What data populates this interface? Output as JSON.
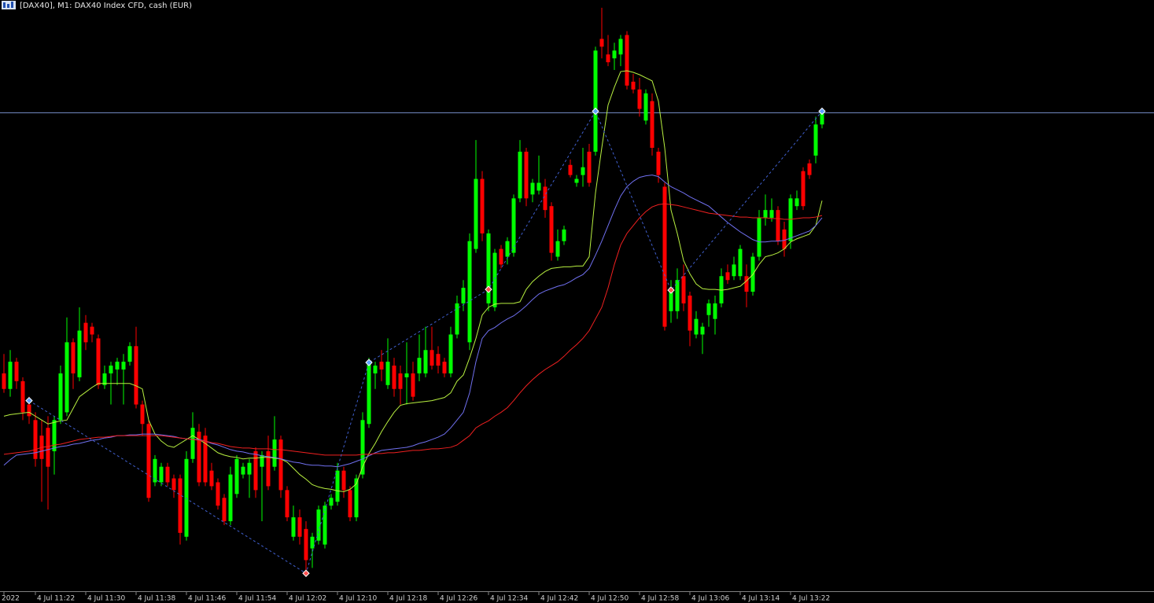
{
  "chart_data": {
    "type": "candlestick",
    "title": "[DAX40], M1:  DAX40 Index CFD, cash (EUR)",
    "categories": [
      "2022",
      null,
      null,
      null,
      null,
      "4 Jul 11:22",
      null,
      null,
      null,
      null,
      null,
      null,
      null,
      "4 Jul 11:30",
      null,
      null,
      null,
      null,
      null,
      null,
      null,
      "4 Jul 11:38",
      null,
      null,
      null,
      null,
      null,
      null,
      null,
      "4 Jul 11:46",
      null,
      null,
      null,
      null,
      null,
      null,
      null,
      "4 Jul 11:54",
      null,
      null,
      null,
      null,
      null,
      null,
      null,
      "4 Jul 12:02",
      null,
      null,
      null,
      null,
      null,
      null,
      null,
      "4 Jul 12:10",
      null,
      null,
      null,
      null,
      null,
      null,
      null,
      "4 Jul 12:18",
      null,
      null,
      null,
      null,
      null,
      null,
      null,
      "4 Jul 12:26",
      null,
      null,
      null,
      null,
      null,
      null,
      null,
      "4 Jul 12:34",
      null,
      null,
      null,
      null,
      null,
      null,
      null,
      "4 Jul 12:42",
      null,
      null,
      null,
      null,
      null,
      null,
      null,
      "4 Jul 12:50",
      null,
      null,
      null,
      null,
      null,
      null,
      null,
      "4 Jul 12:58",
      null,
      null,
      null,
      null,
      null,
      null,
      null,
      "4 Jul 13:06",
      null,
      null,
      null,
      null,
      null,
      null,
      null,
      "4 Jul 13:14",
      null,
      null,
      null,
      null,
      null,
      null,
      null,
      "4 Jul 13:22",
      null,
      null,
      null,
      null,
      null
    ],
    "open": [
      280,
      260,
      295,
      270,
      240,
      220,
      200,
      210,
      180,
      220,
      230,
      320,
      275,
      345,
      340,
      325,
      265,
      280,
      285,
      285,
      295,
      315,
      240,
      215,
      140,
      140,
      160,
      145,
      145,
      70,
      170,
      205,
      200,
      155,
      140,
      120,
      90,
      125,
      150,
      150,
      180,
      160,
      180,
      160,
      195,
      130,
      70,
      95,
      80,
      55,
      65,
      60,
      110,
      115,
      155,
      130,
      95,
      150,
      215,
      280,
      295,
      265,
      290,
      280,
      275,
      280,
      280,
      280,
      310,
      305,
      295,
      280,
      330,
      370,
      320,
      440,
      530,
      370,
      365,
      440,
      430,
      435,
      505,
      565,
      510,
      515,
      520,
      495,
      430,
      450,
      548,
      525,
      535,
      565,
      565,
      710,
      690,
      685,
      690,
      715,
      655,
      645,
      605,
      630,
      565,
      520,
      360,
      360,
      405,
      380,
      330,
      330,
      355,
      350,
      370,
      410,
      405,
      405,
      405,
      385,
      430,
      480,
      480,
      490,
      465,
      450,
      495,
      540,
      550,
      560,
      600
    ],
    "high": [
      305,
      310,
      300,
      275,
      250,
      230,
      220,
      225,
      225,
      290,
      352,
      325,
      365,
      355,
      345,
      330,
      290,
      295,
      300,
      305,
      320,
      340,
      245,
      220,
      175,
      165,
      165,
      150,
      150,
      180,
      230,
      215,
      210,
      165,
      145,
      125,
      160,
      175,
      165,
      170,
      185,
      180,
      200,
      225,
      200,
      135,
      110,
      105,
      90,
      75,
      110,
      115,
      125,
      165,
      160,
      135,
      150,
      230,
      300,
      295,
      310,
      325,
      300,
      290,
      320,
      295,
      330,
      340,
      340,
      315,
      300,
      340,
      380,
      400,
      460,
      580,
      540,
      465,
      440,
      445,
      455,
      510,
      580,
      570,
      530,
      560,
      530,
      500,
      465,
      470,
      555,
      535,
      570,
      575,
      700,
      750,
      715,
      705,
      715,
      720,
      665,
      660,
      645,
      640,
      570,
      525,
      400,
      415,
      420,
      385,
      360,
      345,
      375,
      380,
      415,
      420,
      430,
      445,
      420,
      435,
      490,
      510,
      505,
      495,
      475,
      510,
      515,
      545,
      555,
      610,
      620
    ],
    "low": [
      255,
      250,
      260,
      220,
      215,
      160,
      115,
      105,
      150,
      215,
      225,
      260,
      270,
      310,
      320,
      260,
      260,
      240,
      265,
      240,
      290,
      235,
      200,
      115,
      135,
      135,
      135,
      120,
      60,
      65,
      165,
      135,
      135,
      130,
      105,
      85,
      85,
      120,
      145,
      120,
      120,
      90,
      130,
      155,
      120,
      90,
      65,
      60,
      20,
      30,
      60,
      55,
      105,
      110,
      120,
      90,
      90,
      145,
      210,
      260,
      270,
      260,
      250,
      240,
      240,
      245,
      270,
      275,
      285,
      280,
      275,
      275,
      325,
      360,
      310,
      435,
      450,
      360,
      360,
      415,
      420,
      430,
      500,
      495,
      500,
      510,
      480,
      425,
      425,
      445,
      532,
      520,
      520,
      520,
      560,
      685,
      675,
      670,
      675,
      645,
      640,
      610,
      600,
      560,
      525,
      335,
      345,
      350,
      360,
      315,
      325,
      305,
      340,
      330,
      365,
      395,
      400,
      400,
      365,
      380,
      425,
      470,
      475,
      445,
      430,
      440,
      490,
      490,
      530,
      550,
      595
    ],
    "close": [
      260,
      295,
      270,
      230,
      225,
      170,
      170,
      160,
      220,
      280,
      320,
      280,
      335,
      320,
      330,
      265,
      280,
      290,
      295,
      295,
      315,
      240,
      215,
      120,
      170,
      160,
      140,
      130,
      75,
      170,
      210,
      140,
      140,
      135,
      110,
      90,
      150,
      170,
      160,
      165,
      130,
      175,
      135,
      195,
      130,
      95,
      95,
      70,
      40,
      70,
      105,
      110,
      120,
      155,
      130,
      95,
      145,
      220,
      295,
      290,
      285,
      295,
      260,
      260,
      280,
      250,
      300,
      310,
      290,
      290,
      280,
      330,
      370,
      390,
      450,
      530,
      460,
      460,
      435,
      420,
      450,
      505,
      565,
      505,
      525,
      525,
      490,
      435,
      450,
      465,
      535,
      530,
      545,
      525,
      695,
      700,
      680,
      695,
      710,
      650,
      645,
      620,
      640,
      570,
      535,
      340,
      390,
      400,
      370,
      335,
      350,
      340,
      370,
      370,
      405,
      400,
      420,
      440,
      385,
      430,
      480,
      490,
      490,
      450,
      440,
      505,
      505,
      495,
      535,
      600,
      615
    ],
    "up_color": "#00ff00",
    "down_color": "#ff0000",
    "ylim": [
      0,
      760
    ],
    "moving_averages": [
      {
        "color": "#b8f040",
        "values": [
          225,
          227,
          228,
          229,
          230,
          225,
          220,
          215,
          217,
          219,
          220,
          235,
          250,
          256,
          262,
          267,
          267,
          267,
          267,
          267,
          267,
          264,
          260,
          220,
          202,
          193,
          187,
          185,
          190,
          195,
          200,
          195,
          190,
          184,
          178,
          175,
          173,
          172,
          170,
          171,
          171,
          172,
          172,
          171,
          170,
          166,
          158,
          150,
          144,
          137,
          134,
          132,
          131,
          129,
          128,
          131,
          138,
          160,
          177,
          190,
          205,
          218,
          230,
          239,
          241,
          242,
          243,
          244,
          245,
          247,
          249,
          255,
          270,
          278,
          300,
          325,
          355,
          365,
          369,
          370,
          370,
          370,
          372,
          388,
          398,
          405,
          411,
          415,
          416,
          417,
          417,
          418,
          418,
          430,
          512,
          570,
          625,
          648,
          668,
          669,
          667,
          664,
          660,
          656,
          630,
          570,
          490,
          460,
          425,
          408,
          395,
          389,
          388,
          388,
          387,
          388,
          390,
          392,
          399,
          407,
          420,
          430,
          432,
          435,
          440,
          449,
          453,
          456,
          459,
          470,
          502
        ]
      },
      {
        "color": "#7070f0",
        "values": [
          162,
          169,
          175,
          176,
          177,
          178,
          180,
          182,
          184,
          186,
          187,
          189,
          190,
          192,
          194,
          195,
          197,
          198,
          200,
          200,
          201,
          201,
          202,
          202,
          202,
          201,
          200,
          199,
          197,
          196,
          195,
          195,
          193,
          190,
          188,
          185,
          182,
          180,
          179,
          177,
          176,
          174,
          173,
          172,
          170,
          168,
          166,
          165,
          163,
          162,
          162,
          161,
          161,
          160,
          162,
          164,
          167,
          170,
          174,
          178,
          181,
          182,
          183,
          184,
          185,
          187,
          190,
          192,
          195,
          198,
          202,
          210,
          220,
          230,
          255,
          295,
          325,
          335,
          339,
          345,
          350,
          354,
          360,
          367,
          375,
          382,
          386,
          389,
          392,
          394,
          398,
          403,
          407,
          415,
          432,
          450,
          470,
          490,
          508,
          520,
          527,
          532,
          534,
          535,
          533,
          526,
          520,
          516,
          512,
          507,
          503,
          499,
          495,
          488,
          481,
          474,
          468,
          462,
          457,
          452,
          449,
          449,
          450,
          450,
          451,
          454,
          457,
          460,
          463,
          470,
          480
        ]
      },
      {
        "color": "#f02020",
        "values": [
          176,
          177,
          178,
          179,
          180,
          182,
          185,
          186,
          188,
          189,
          191,
          193,
          195,
          196,
          197,
          198,
          198,
          199,
          200,
          200,
          200,
          200,
          200,
          200,
          200,
          200,
          199,
          198,
          197,
          196,
          195,
          194,
          193,
          191,
          190,
          188,
          186,
          185,
          184,
          184,
          183,
          183,
          183,
          182,
          182,
          181,
          180,
          179,
          178,
          177,
          176,
          175,
          175,
          175,
          175,
          175,
          175,
          176,
          176,
          177,
          177,
          178,
          178,
          179,
          180,
          181,
          181,
          182,
          183,
          183,
          184,
          185,
          188,
          194,
          200,
          210,
          215,
          219,
          225,
          230,
          236,
          245,
          255,
          264,
          272,
          279,
          285,
          290,
          295,
          302,
          310,
          317,
          325,
          335,
          350,
          365,
          390,
          420,
          445,
          460,
          470,
          480,
          488,
          494,
          497,
          498,
          497,
          496,
          494,
          492,
          490,
          488,
          486,
          485,
          484,
          483,
          482,
          481,
          481,
          480,
          480,
          480,
          479,
          479,
          478,
          478,
          479,
          480,
          480,
          481,
          483
        ]
      }
    ],
    "zigzag": {
      "color": "#4060d0",
      "x": [
        4,
        48,
        58,
        77,
        94,
        106,
        130
      ],
      "values": [
        245,
        23,
        294,
        388,
        617,
        387,
        617
      ]
    },
    "price_line": {
      "value": 615,
      "color": "#7088c0"
    }
  }
}
